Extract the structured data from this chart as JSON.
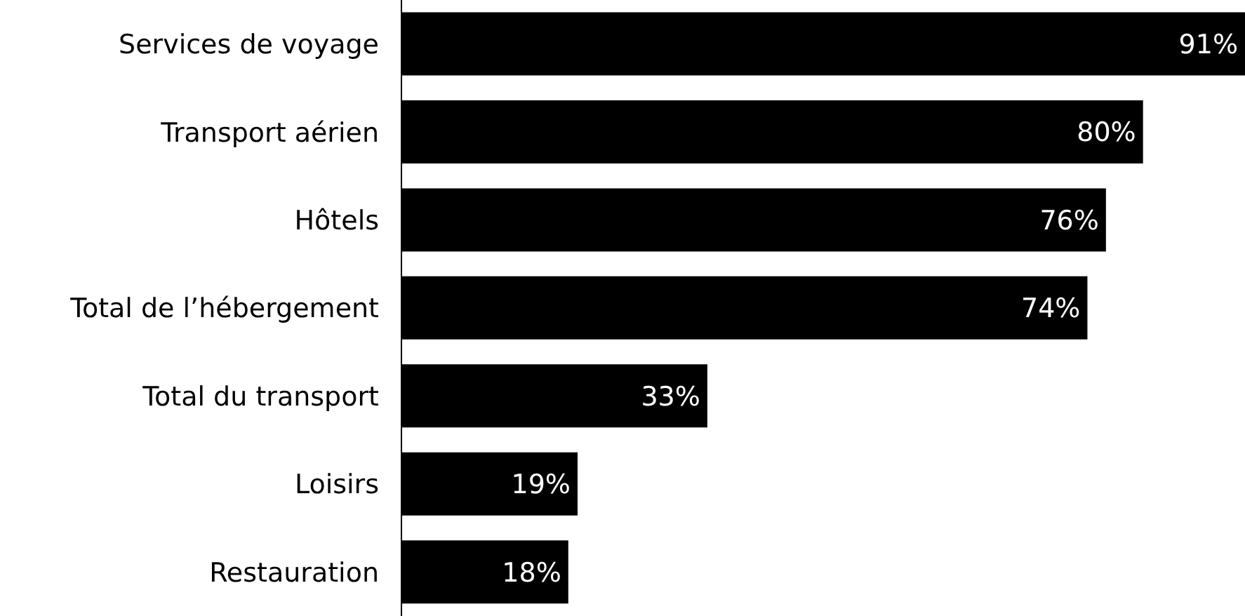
{
  "chart_data": {
    "type": "bar",
    "orientation": "horizontal",
    "tick_labels": "y",
    "categories": [
      "Services de voyage",
      "Transport aérien",
      "Hôtels",
      "Total de l’hébergement",
      "Total du transport",
      "Loisirs",
      "Restauration"
    ],
    "values": [
      91,
      80,
      76,
      74,
      33,
      19,
      18
    ],
    "value_labels": [
      "91%",
      "80%",
      "76%",
      "74%",
      "33%",
      "19%",
      "18%"
    ],
    "color": "#000000",
    "grid": false,
    "legend": false
  }
}
